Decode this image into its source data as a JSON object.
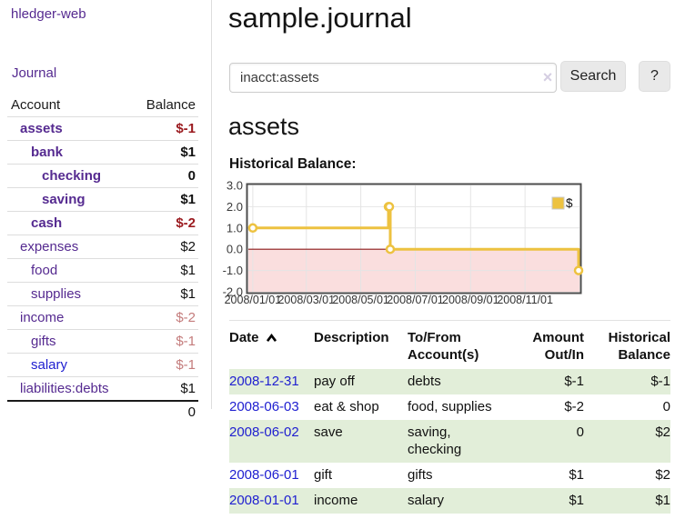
{
  "sidebar": {
    "brand": "hledger-web",
    "nav": {
      "journal_label": "Journal"
    },
    "accounts_table": {
      "headers": {
        "account": "Account",
        "balance": "Balance"
      },
      "rows": [
        {
          "name": "assets",
          "level": 0,
          "bold": true,
          "balance": "$-1",
          "negative": "strong"
        },
        {
          "name": "bank",
          "level": 1,
          "bold": true,
          "balance": "$1"
        },
        {
          "name": "checking",
          "level": 2,
          "bold": true,
          "balance": "0"
        },
        {
          "name": "saving",
          "level": 2,
          "bold": true,
          "balance": "$1"
        },
        {
          "name": "cash",
          "level": 1,
          "bold": true,
          "balance": "$-2",
          "negative": "strong"
        },
        {
          "name": "expenses",
          "level": 0,
          "bold": false,
          "balance": "$2"
        },
        {
          "name": "food",
          "level": 1,
          "bold": false,
          "balance": "$1"
        },
        {
          "name": "supplies",
          "level": 1,
          "bold": false,
          "balance": "$1"
        },
        {
          "name": "income",
          "level": 0,
          "bold": false,
          "balance": "$-2",
          "negative": "muted"
        },
        {
          "name": "gifts",
          "level": 1,
          "bold": false,
          "balance": "$-1",
          "negative": "muted"
        },
        {
          "name": "salary",
          "level": 1,
          "bold": false,
          "balance": "$-1",
          "negative": "muted",
          "link_color": "blue"
        },
        {
          "name": "liabilities:debts",
          "level": 0,
          "bold": false,
          "balance": "$1"
        }
      ],
      "total": "0"
    }
  },
  "main": {
    "title": "sample.journal",
    "search": {
      "value": "inacct:assets",
      "clear_icon": "×",
      "button_label": "Search",
      "help_label": "?"
    },
    "account_heading": "assets",
    "chart_heading": "Historical Balance:"
  },
  "chart_data": {
    "type": "line",
    "title": "Historical Balance:",
    "step": true,
    "xlim_days": [
      -5,
      366
    ],
    "ylim": [
      -2,
      3
    ],
    "x_epoch": "2008-01-01",
    "series": [
      {
        "name": "$",
        "color": "#edc240",
        "points": [
          {
            "date": "2008-01-01",
            "day": 0,
            "value": 1
          },
          {
            "date": "2008-06-01",
            "day": 152,
            "value": 2
          },
          {
            "date": "2008-06-02",
            "day": 153,
            "value": 2
          },
          {
            "date": "2008-06-03",
            "day": 154,
            "value": 0
          },
          {
            "date": "2008-12-31",
            "day": 365,
            "value": -1
          }
        ]
      }
    ],
    "xticks": [
      {
        "day": 0,
        "label": "2008/01/01"
      },
      {
        "day": 60,
        "label": "2008/03/01"
      },
      {
        "day": 121,
        "label": "2008/05/01"
      },
      {
        "day": 182,
        "label": "2008/07/01"
      },
      {
        "day": 244,
        "label": "2008/09/01"
      },
      {
        "day": 305,
        "label": "2008/11/01"
      }
    ],
    "yticks": [
      {
        "value": 3,
        "label": "3.0"
      },
      {
        "value": 2,
        "label": "2.0"
      },
      {
        "value": 1,
        "label": "1.0"
      },
      {
        "value": 0,
        "label": "0.0"
      },
      {
        "value": -1,
        "label": "-1.0"
      },
      {
        "value": -2,
        "label": "-2.0"
      }
    ],
    "legend": {
      "label": "$",
      "position": "top-right"
    },
    "grid": true,
    "negative_region_fill": "#fadede",
    "zero_line_color": "#8b1a1a"
  },
  "transactions": {
    "sort": {
      "column": "Date",
      "direction": "ascending"
    },
    "headers": [
      {
        "line1": "Date",
        "line2": ""
      },
      {
        "line1": "Description",
        "line2": ""
      },
      {
        "line1": "To/From",
        "line2": "Account(s)"
      },
      {
        "line1": "Amount",
        "line2": "Out/In"
      },
      {
        "line1": "Historical",
        "line2": "Balance"
      }
    ],
    "rows": [
      {
        "date": "2008-12-31",
        "description": "pay off",
        "accounts": "debts",
        "amount": "$-1",
        "amount_negative": true,
        "balance": "$-1",
        "balance_negative": true
      },
      {
        "date": "2008-06-03",
        "description": "eat & shop",
        "accounts": "food, supplies",
        "amount": "$-2",
        "amount_negative": true,
        "balance": "0",
        "balance_negative": false
      },
      {
        "date": "2008-06-02",
        "description": "save",
        "accounts": "saving,\nchecking",
        "amount": "0",
        "amount_negative": false,
        "balance": "$2",
        "balance_negative": false
      },
      {
        "date": "2008-06-01",
        "description": "gift",
        "accounts": "gifts",
        "amount": "$1",
        "amount_negative": false,
        "balance": "$2",
        "balance_negative": false
      },
      {
        "date": "2008-01-01",
        "description": "income",
        "accounts": "salary",
        "amount": "$1",
        "amount_negative": false,
        "balance": "$1",
        "balance_negative": false
      }
    ]
  },
  "colors": {
    "link_purple": "#552a90",
    "link_blue": "#2020d0",
    "negative_strong": "#9b1b20",
    "negative_muted": "#c47c7c",
    "row_stripe_green": "#e2eed9",
    "chart_line_gold": "#edc240",
    "chart_negative_region": "#fadede",
    "chart_zero_line": "#8b1a1a",
    "sidebar_divider": "#dddddd"
  }
}
